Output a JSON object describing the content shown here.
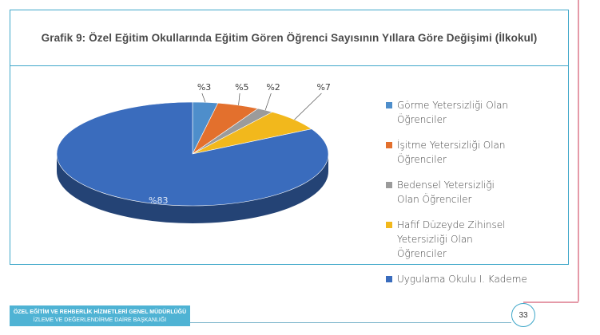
{
  "chart_data": {
    "type": "pie",
    "title": "Grafik 9: Özel Eğitim Okullarında Eğitim Gören Öğrenci Sayısının Yıllara Göre Değişimi (İlkokul)",
    "slices": [
      {
        "label": "Görme Yetersizliği Olan Öğrenciler",
        "value": 3,
        "display": "%3",
        "color": "#4e8ecb"
      },
      {
        "label": "İşitme Yetersizliği Olan Öğrenciler",
        "value": 5,
        "display": "%5",
        "color": "#e3702d"
      },
      {
        "label": "Bedensel Yetersizliği Olan Öğrenciler",
        "value": 2,
        "display": "%2",
        "color": "#9b9b9b"
      },
      {
        "label": "Hafif Düzeyde Zihinsel Yetersizliği Olan Öğrenciler",
        "value": 7,
        "display": "%7",
        "color": "#f2b81c"
      },
      {
        "label": "Uygulama Okulu I. Kademe",
        "value": 83,
        "display": "%83",
        "color": "#3a6cbd"
      }
    ],
    "legend_position": "right",
    "style": "3d"
  },
  "footer": {
    "line1": "ÖZEL EĞİTİM VE REHBERLİK HİZMETLERİ GENEL MÜDÜRLÜĞÜ",
    "line2": "İZLEME VE DEĞERLENDİRME DAİRE BAŞKANLIĞI"
  },
  "page_number": "33"
}
